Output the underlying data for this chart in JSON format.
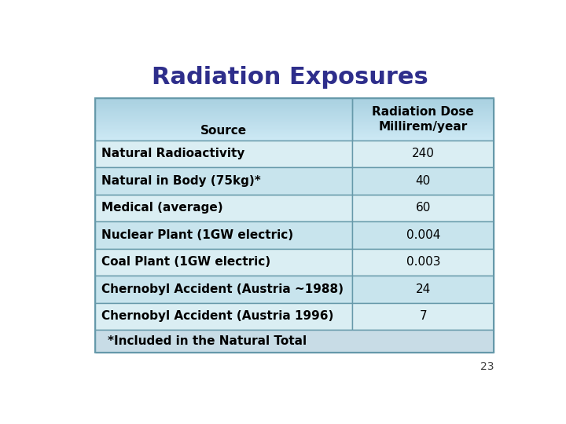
{
  "title": "Radiation Exposures",
  "title_color": "#2E2E8B",
  "title_fontsize": 22,
  "header_col1": "Source",
  "header_col2": "Radiation Dose\nMillirem/year",
  "rows": [
    [
      "Natural Radioactivity",
      "240"
    ],
    [
      "Natural in Body (75kg)*",
      "40"
    ],
    [
      "Medical (average)",
      "60"
    ],
    [
      "Nuclear Plant (1GW electric)",
      "0.004"
    ],
    [
      "Coal Plant (1GW electric)",
      "0.003"
    ],
    [
      "Chernobyl Accident (Austria ~1988)",
      "24"
    ],
    [
      "Chernobyl Accident (Austria 1996)",
      "7"
    ]
  ],
  "footnote": "*Included in the Natural Total",
  "page_number": "23",
  "header_bg_top": "#b8dce8",
  "header_bg_bot": "#d4edf5",
  "row_bg_light": "#daeef3",
  "row_bg_mid": "#c8e4ed",
  "footnote_bg": "#c8dce6",
  "border_color": "#6699aa",
  "text_color": "#000000",
  "cell_fontsize": 11,
  "header_fontsize": 11,
  "col1_value_fontsize": 11,
  "col2_value_fontsize": 11
}
